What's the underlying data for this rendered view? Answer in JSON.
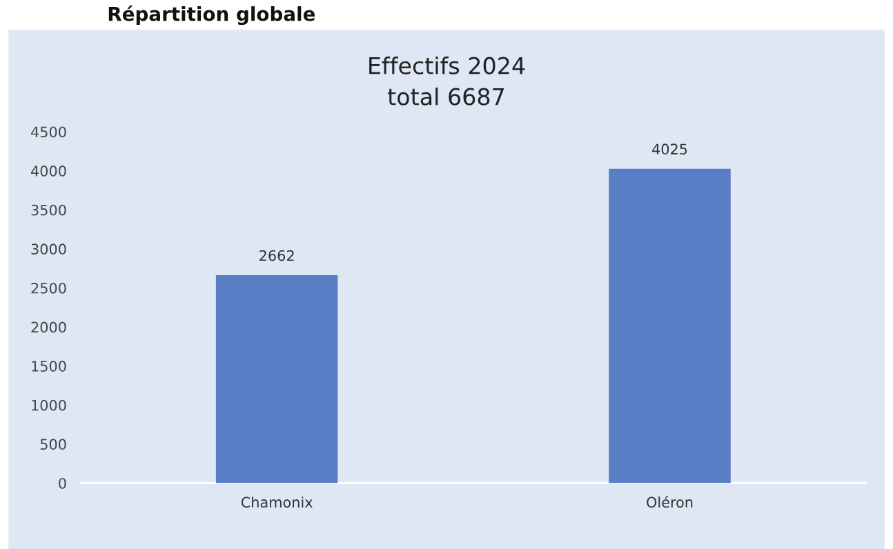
{
  "chart_data": {
    "type": "bar",
    "title": "Effectifs 2024\ntotal 6687",
    "categories": [
      "Chamonix",
      "Oléron"
    ],
    "values": [
      2662,
      4025
    ],
    "color": "#5a7ec6",
    "data_labels": true,
    "ylim": [
      0,
      4500
    ],
    "yticks": [
      0,
      500,
      1000,
      1500,
      2000,
      2500,
      3000,
      3500,
      4000,
      4500
    ],
    "grid": false,
    "annotations": [
      "Répartition globale"
    ]
  }
}
